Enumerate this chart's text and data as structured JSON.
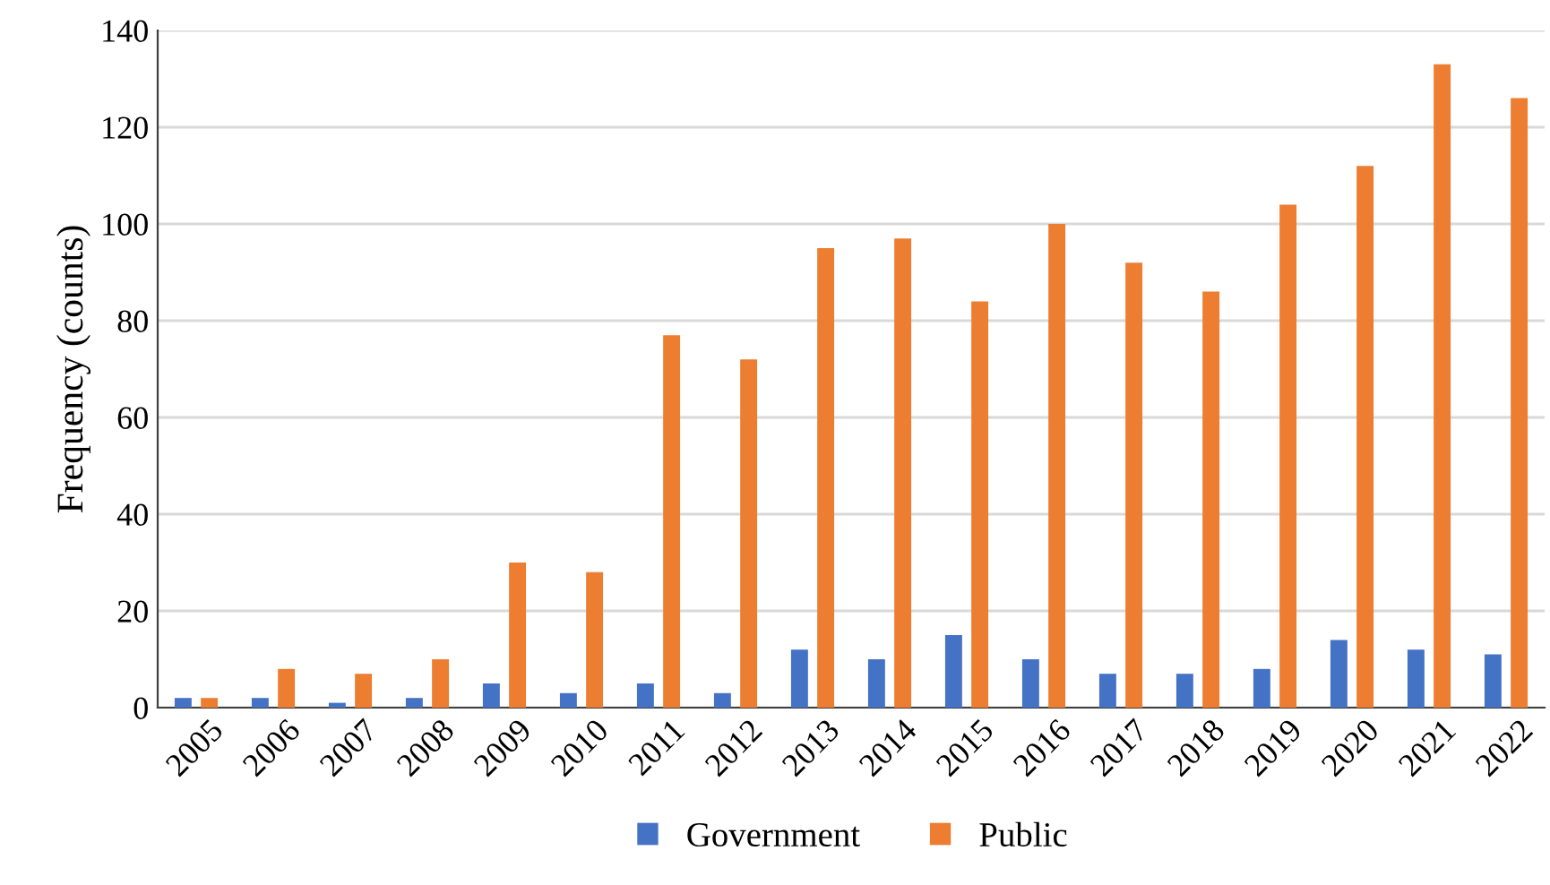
{
  "chart_data": {
    "type": "bar",
    "ylabel": "Frequency (counts)",
    "categories": [
      "2005",
      "2006",
      "2007",
      "2008",
      "2009",
      "2010",
      "2011",
      "2012",
      "2013",
      "2014",
      "2015",
      "2016",
      "2017",
      "2018",
      "2019",
      "2020",
      "2021",
      "2022"
    ],
    "series": [
      {
        "name": "Government",
        "color": "#4472c4",
        "values": [
          2,
          2,
          1,
          2,
          5,
          3,
          5,
          3,
          12,
          10,
          15,
          10,
          7,
          7,
          8,
          14,
          12,
          11
        ]
      },
      {
        "name": "Public",
        "color": "#ed7d31",
        "values": [
          2,
          8,
          7,
          10,
          30,
          28,
          77,
          72,
          95,
          97,
          84,
          100,
          92,
          86,
          104,
          112,
          133,
          126
        ]
      }
    ],
    "ylim": [
      0,
      140
    ],
    "yticks": [
      0,
      20,
      40,
      60,
      80,
      100,
      120,
      140
    ],
    "grid": "y",
    "legend": "bottom"
  }
}
